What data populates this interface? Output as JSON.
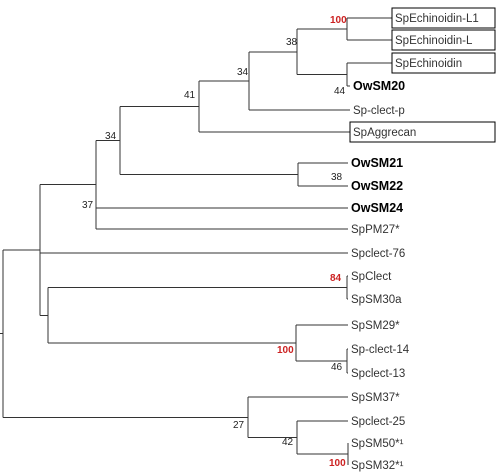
{
  "tree": {
    "leaves": [
      {
        "label": "SpEchinoidin-L1",
        "boxed": true,
        "bold": false
      },
      {
        "label": "SpEchinoidin-L",
        "boxed": true,
        "bold": false
      },
      {
        "label": "SpEchinoidin",
        "boxed": true,
        "bold": false
      },
      {
        "label": "OwSM20",
        "boxed": false,
        "bold": true
      },
      {
        "label": "Sp-clect-p",
        "boxed": false,
        "bold": false
      },
      {
        "label": "SpAggrecan",
        "boxed": true,
        "bold": false
      },
      {
        "label": "OwSM21",
        "boxed": false,
        "bold": true
      },
      {
        "label": "OwSM22",
        "boxed": false,
        "bold": true
      },
      {
        "label": "OwSM24",
        "boxed": false,
        "bold": true
      },
      {
        "label": "SpPM27*",
        "boxed": false,
        "bold": false
      },
      {
        "label": "Spclect-76",
        "boxed": false,
        "bold": false
      },
      {
        "label": "SpClect",
        "boxed": false,
        "bold": false
      },
      {
        "label": "SpSM30a",
        "boxed": false,
        "bold": false
      },
      {
        "label": "SpSM29*",
        "boxed": false,
        "bold": false
      },
      {
        "label": "Sp-clect-14",
        "boxed": false,
        "bold": false
      },
      {
        "label": "Spclect-13",
        "boxed": false,
        "bold": false
      },
      {
        "label": "SpSM37*",
        "boxed": false,
        "bold": false
      },
      {
        "label": "Spclect-25",
        "boxed": false,
        "bold": false
      },
      {
        "label": "SpSM50*¹",
        "boxed": false,
        "bold": false
      },
      {
        "label": "SpSM32*¹",
        "boxed": false,
        "bold": false
      }
    ],
    "support_values": [
      {
        "node": "n1",
        "value": "100",
        "highlight": true
      },
      {
        "node": "n2",
        "value": "38",
        "highlight": false
      },
      {
        "node": "n3",
        "value": "44",
        "highlight": false
      },
      {
        "node": "n4",
        "value": "34",
        "highlight": false
      },
      {
        "node": "n5",
        "value": "41",
        "highlight": false
      },
      {
        "node": "n6",
        "value": "38",
        "highlight": false
      },
      {
        "node": "n7",
        "value": "34",
        "highlight": false
      },
      {
        "node": "n8",
        "value": "37",
        "highlight": false
      },
      {
        "node": "n9",
        "value": "84",
        "highlight": true
      },
      {
        "node": "n10",
        "value": "100",
        "highlight": true
      },
      {
        "node": "n11",
        "value": "46",
        "highlight": false
      },
      {
        "node": "n12",
        "value": "27",
        "highlight": false
      },
      {
        "node": "n13",
        "value": "42",
        "highlight": false
      },
      {
        "node": "n14",
        "value": "100",
        "highlight": true
      }
    ],
    "highlight_color": "#cc2222"
  }
}
